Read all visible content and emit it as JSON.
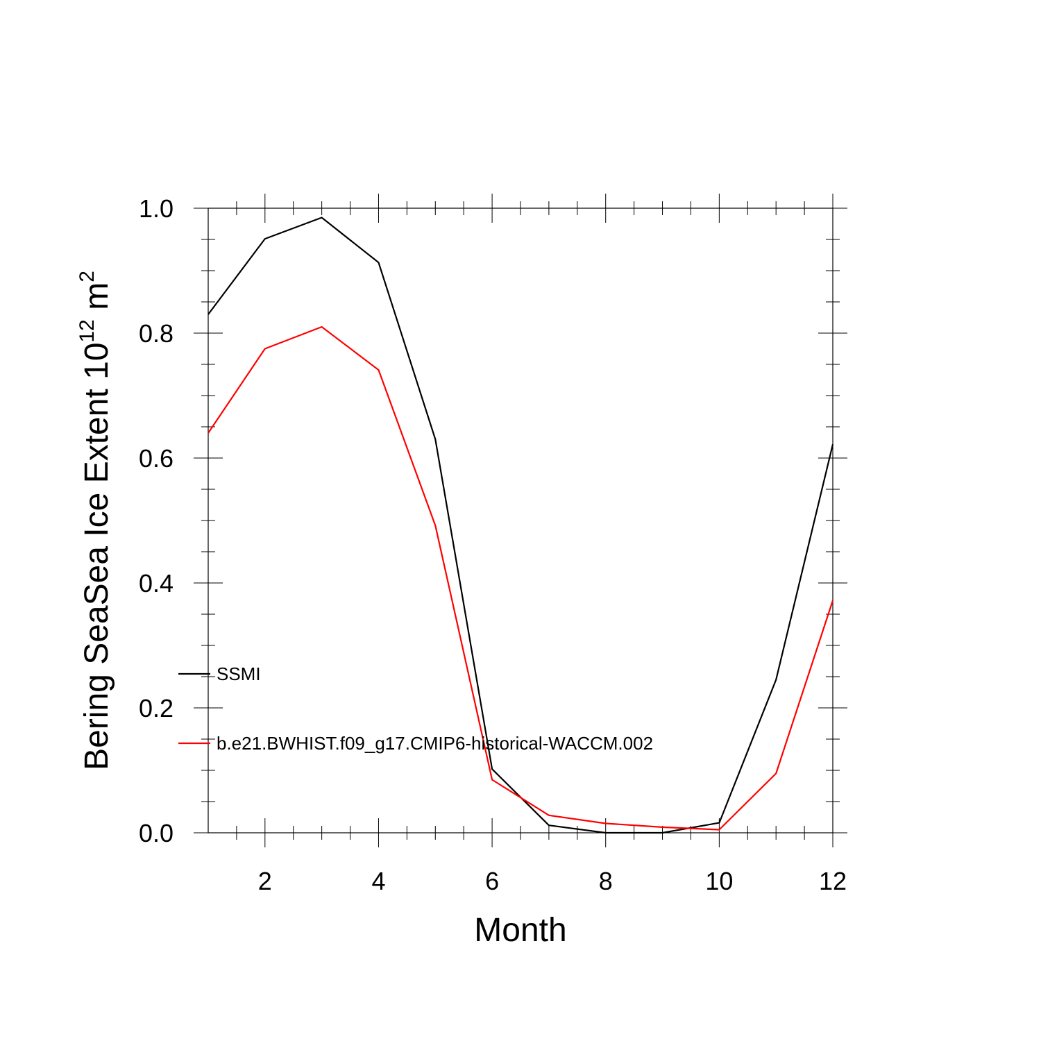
{
  "chart_data": {
    "type": "line",
    "xlabel": "Month",
    "ylabel": {
      "text": "Bering SeaSea Ice Extent 10",
      "sup": "12",
      "unit": " m",
      "unit_sup": "2"
    },
    "xlim": [
      1,
      12
    ],
    "ylim": [
      0,
      1.0
    ],
    "x": [
      1,
      2,
      3,
      4,
      5,
      6,
      7,
      8,
      9,
      10,
      11,
      12
    ],
    "x_ticks": [
      "2",
      "4",
      "6",
      "8",
      "10",
      "12"
    ],
    "x_tick_values": [
      2,
      4,
      6,
      8,
      10,
      12
    ],
    "y_ticks": [
      "0.0",
      "0.2",
      "0.4",
      "0.6",
      "0.8",
      "1.0"
    ],
    "y_tick_values": [
      0,
      0.2,
      0.4,
      0.6,
      0.8,
      1.0
    ],
    "grid": false,
    "legend_position": "inside left",
    "series": [
      {
        "name": "SSMI",
        "color": "#000000",
        "values": [
          0.83,
          0.951,
          0.985,
          0.913,
          0.63,
          0.102,
          0.012,
          0.0,
          0.0,
          0.016,
          0.245,
          0.622
        ]
      },
      {
        "name": "b.e21.BWHIST.f09_g17.CMIP6-historical-WACCM.002",
        "color": "#ff0000",
        "values": [
          0.64,
          0.775,
          0.81,
          0.741,
          0.492,
          0.085,
          0.028,
          0.015,
          0.009,
          0.005,
          0.095,
          0.372
        ]
      }
    ]
  }
}
